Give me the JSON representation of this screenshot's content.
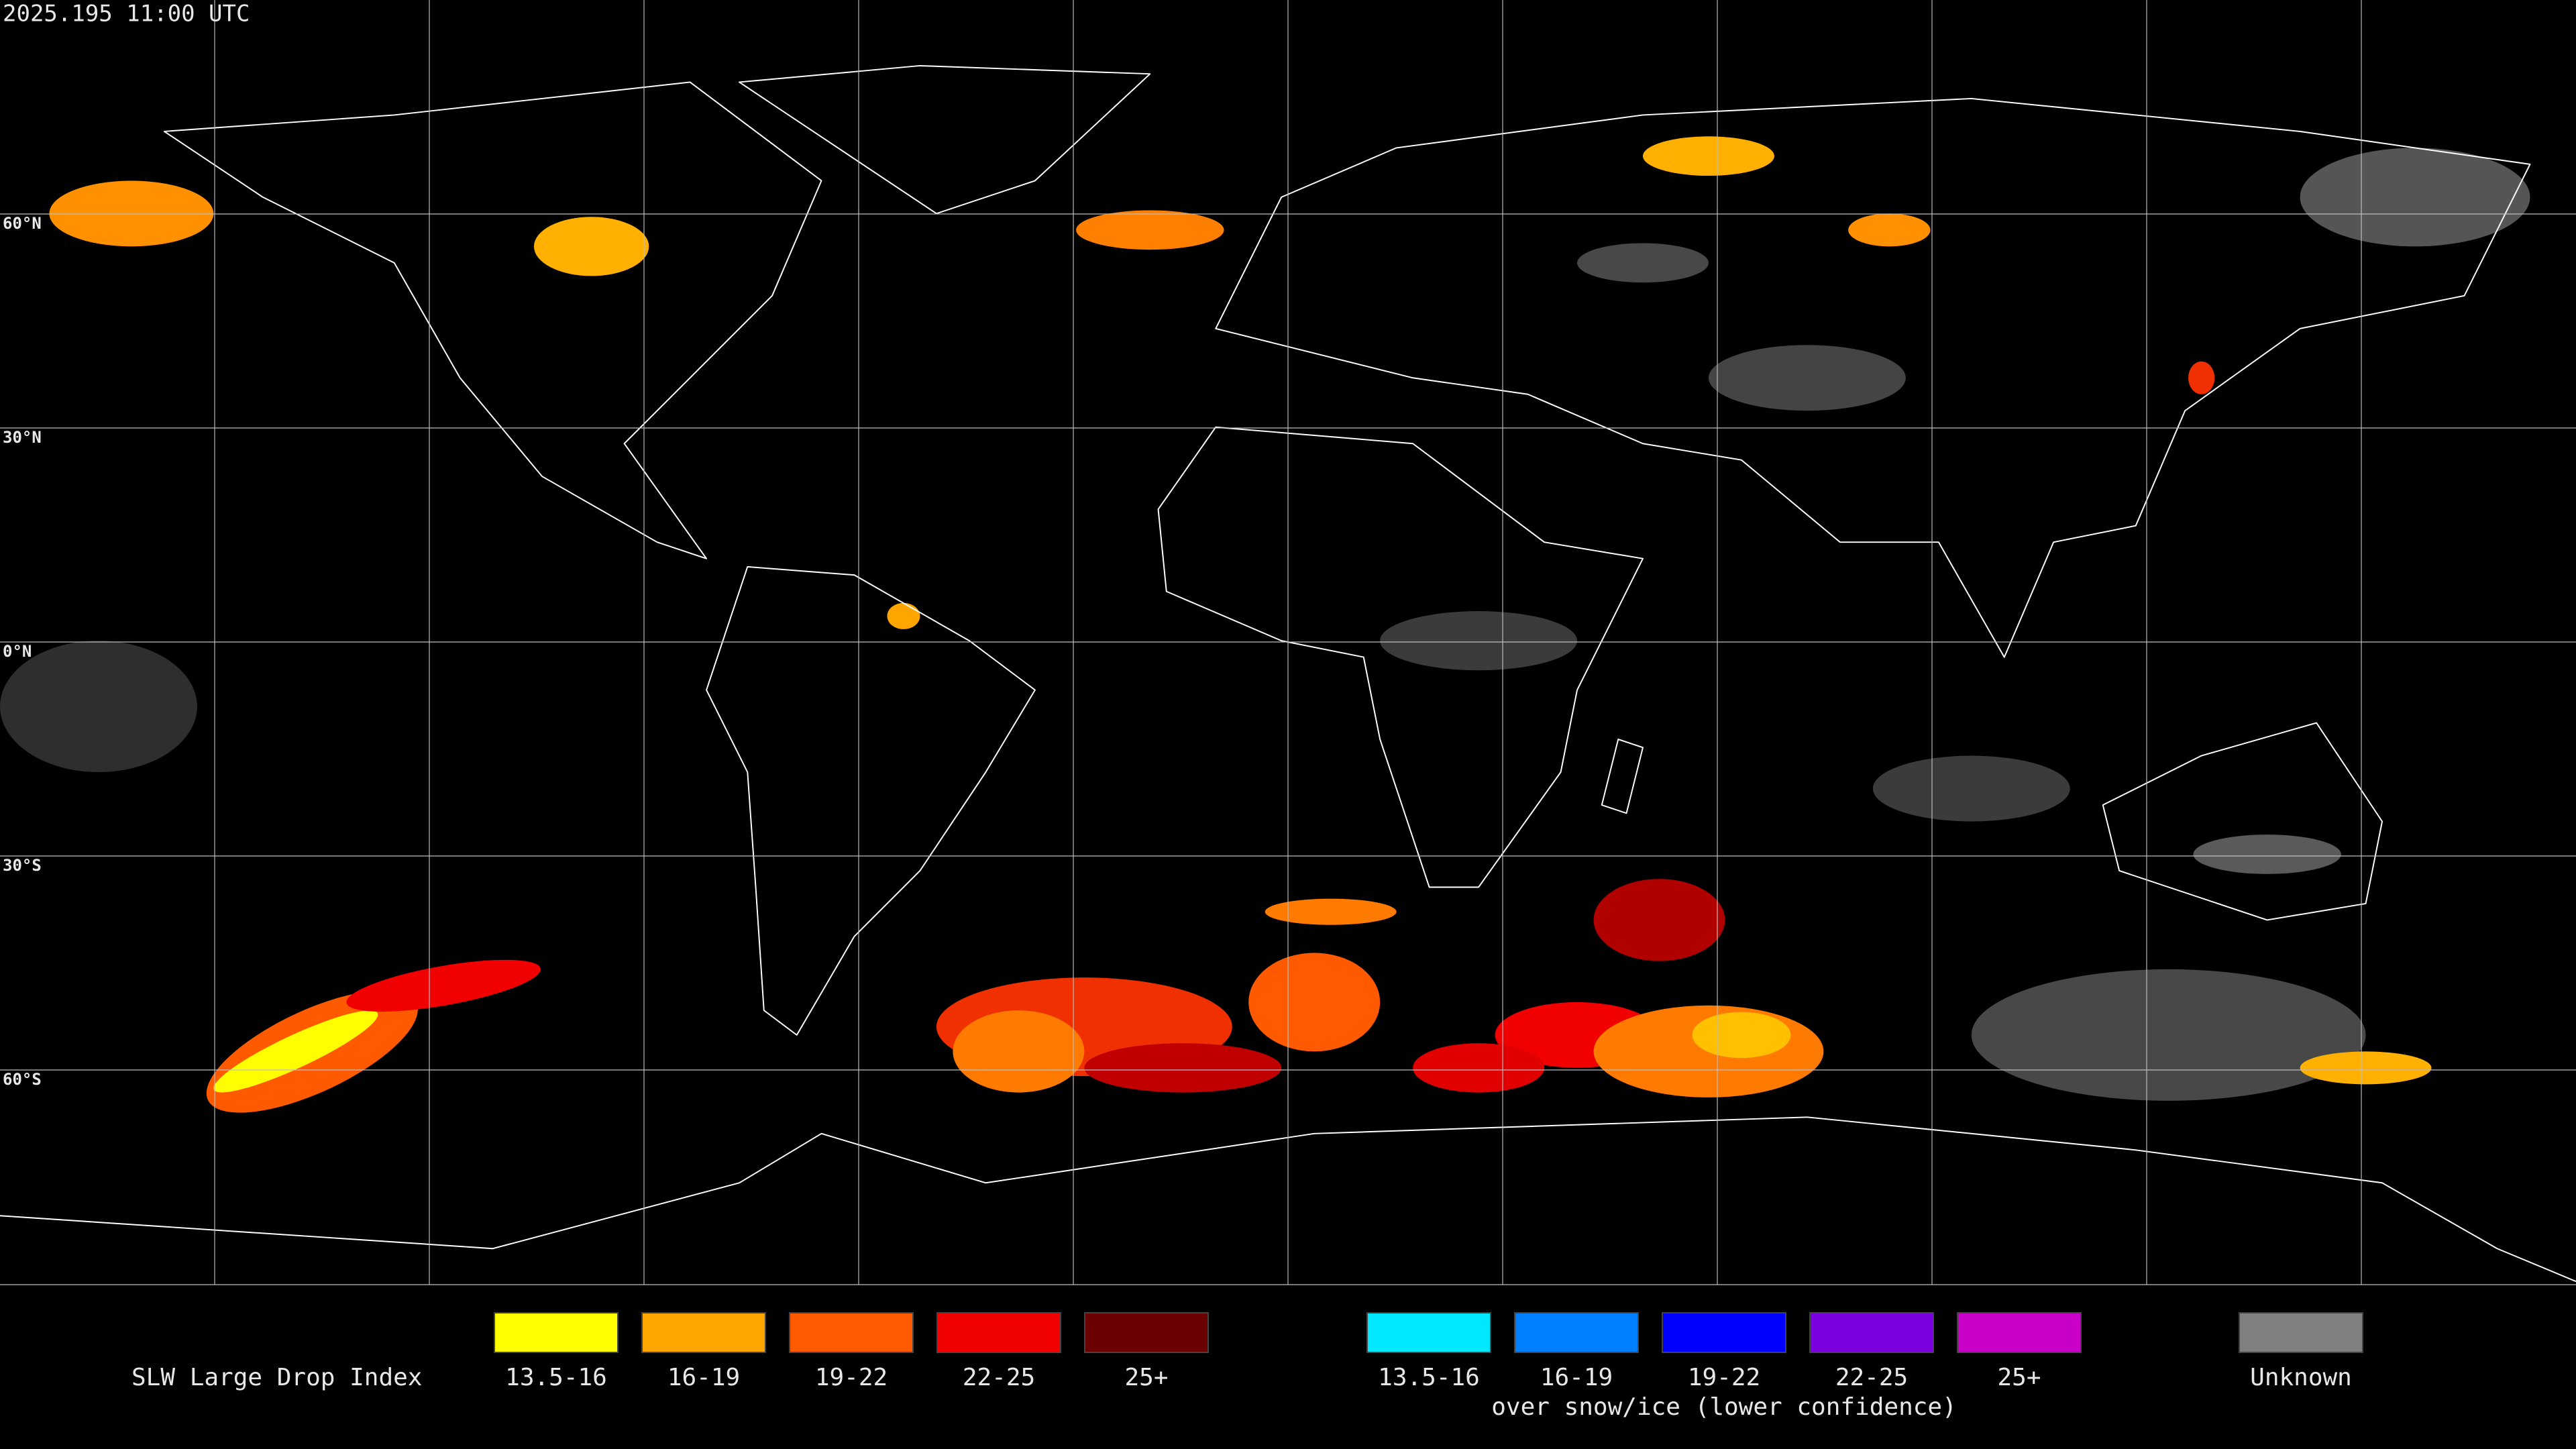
{
  "header": {
    "timestamp": "2025.195 11:00 UTC"
  },
  "map": {
    "latitude_labels": [
      "60°N",
      "30°N",
      "0°N",
      "30°S",
      "60°S"
    ]
  },
  "legend": {
    "title": "SLW Large Drop Index",
    "groups": [
      {
        "items": [
          {
            "label": "13.5-16",
            "color": "#ffff00"
          },
          {
            "label": "16-19",
            "color": "#ffa500"
          },
          {
            "label": "19-22",
            "color": "#ff5a00"
          },
          {
            "label": "22-25",
            "color": "#f00000"
          },
          {
            "label": "25+",
            "color": "#6b0000"
          }
        ]
      },
      {
        "items": [
          {
            "label": "13.5-16",
            "color": "#00e8ff"
          },
          {
            "label": "16-19",
            "color": "#0080ff"
          },
          {
            "label": "19-22",
            "color": "#0000ff"
          },
          {
            "label": "22-25",
            "color": "#7a00e0"
          },
          {
            "label": "25+",
            "color": "#c800c8"
          }
        ],
        "caption": "over snow/ice (lower confidence)"
      },
      {
        "items": [
          {
            "label": "Unknown",
            "color": "#808080"
          }
        ]
      }
    ]
  }
}
